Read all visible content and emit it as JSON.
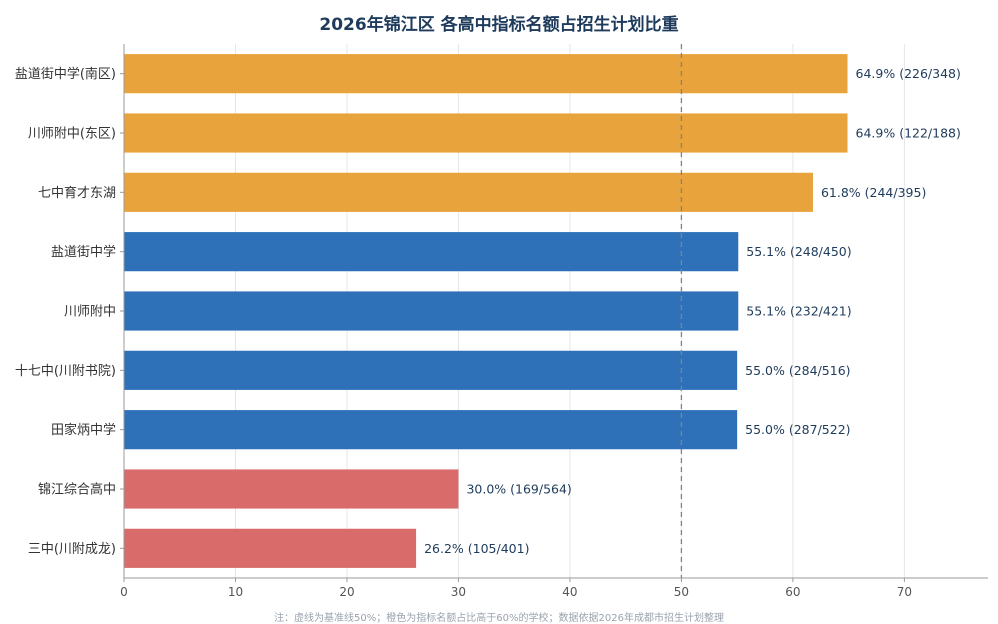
{
  "chart_data": {
    "type": "bar",
    "orientation": "horizontal",
    "title": "2026年锦江区 各高中指标名额占招生计划比重",
    "categories": [
      "盐道街中学(南区)",
      "川师附中(东区)",
      "七中育才东湖",
      "盐道街中学",
      "川师附中",
      "十七中(川附书院)",
      "田家炳中学",
      "锦江综合高中",
      "三中(川附成龙)"
    ],
    "values": [
      64.9,
      64.9,
      61.8,
      55.1,
      55.1,
      55.0,
      55.0,
      30.0,
      26.2
    ],
    "data_labels": [
      "64.9%  (226/348)",
      "64.9%  (122/188)",
      "61.8%  (244/395)",
      "55.1%  (248/450)",
      "55.1%  (232/421)",
      "55.0%  (284/516)",
      "55.0%  (287/522)",
      "30.0%  (169/564)",
      "26.2%  (105/401)"
    ],
    "bar_colors": [
      "#e8a33d",
      "#e8a33d",
      "#e8a33d",
      "#2e71b8",
      "#2e71b8",
      "#2e71b8",
      "#2e71b8",
      "#d96b6b",
      "#d96b6b"
    ],
    "xlim": [
      0,
      77.5
    ],
    "xticks": [
      0,
      10,
      20,
      30,
      40,
      50,
      60,
      70
    ],
    "reference_line": 50,
    "grid": "vertical",
    "xlabel": "",
    "ylabel": "",
    "footnote": "注：虚线为基准线50%；橙色为指标名额占比高于60%的学校；数据依据2026年成都市招生计划整理"
  }
}
